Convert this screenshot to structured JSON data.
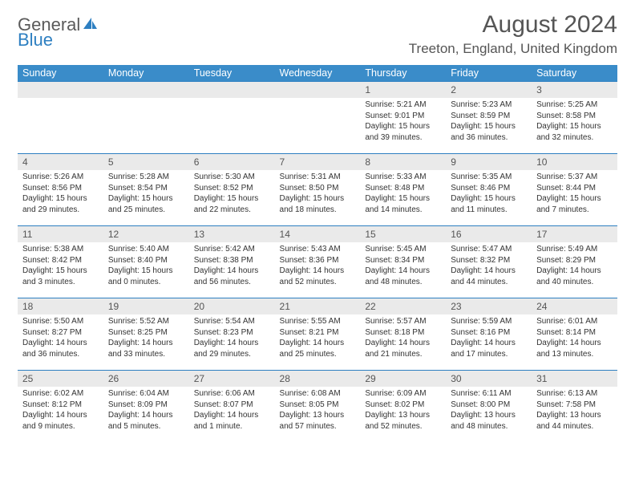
{
  "brand": {
    "part1": "General",
    "part2": "Blue"
  },
  "title": "August 2024",
  "location": "Treeton, England, United Kingdom",
  "colors": {
    "header_bg": "#3a8cc9",
    "rule": "#2d7fc1",
    "daynum_bg": "#eaeaea",
    "text": "#333333",
    "muted": "#555555",
    "brand_gray": "#5a5a5a",
    "brand_blue": "#2d7fc1",
    "page_bg": "#ffffff"
  },
  "typography": {
    "title_size_pt": 22,
    "location_size_pt": 13,
    "day_header_size_pt": 9.5,
    "daynum_size_pt": 9,
    "body_size_pt": 7.5
  },
  "weekdays": [
    "Sunday",
    "Monday",
    "Tuesday",
    "Wednesday",
    "Thursday",
    "Friday",
    "Saturday"
  ],
  "weeks": [
    [
      {
        "n": "",
        "lines": []
      },
      {
        "n": "",
        "lines": []
      },
      {
        "n": "",
        "lines": []
      },
      {
        "n": "",
        "lines": []
      },
      {
        "n": "1",
        "lines": [
          "Sunrise: 5:21 AM",
          "Sunset: 9:01 PM",
          "Daylight: 15 hours and 39 minutes."
        ]
      },
      {
        "n": "2",
        "lines": [
          "Sunrise: 5:23 AM",
          "Sunset: 8:59 PM",
          "Daylight: 15 hours and 36 minutes."
        ]
      },
      {
        "n": "3",
        "lines": [
          "Sunrise: 5:25 AM",
          "Sunset: 8:58 PM",
          "Daylight: 15 hours and 32 minutes."
        ]
      }
    ],
    [
      {
        "n": "4",
        "lines": [
          "Sunrise: 5:26 AM",
          "Sunset: 8:56 PM",
          "Daylight: 15 hours and 29 minutes."
        ]
      },
      {
        "n": "5",
        "lines": [
          "Sunrise: 5:28 AM",
          "Sunset: 8:54 PM",
          "Daylight: 15 hours and 25 minutes."
        ]
      },
      {
        "n": "6",
        "lines": [
          "Sunrise: 5:30 AM",
          "Sunset: 8:52 PM",
          "Daylight: 15 hours and 22 minutes."
        ]
      },
      {
        "n": "7",
        "lines": [
          "Sunrise: 5:31 AM",
          "Sunset: 8:50 PM",
          "Daylight: 15 hours and 18 minutes."
        ]
      },
      {
        "n": "8",
        "lines": [
          "Sunrise: 5:33 AM",
          "Sunset: 8:48 PM",
          "Daylight: 15 hours and 14 minutes."
        ]
      },
      {
        "n": "9",
        "lines": [
          "Sunrise: 5:35 AM",
          "Sunset: 8:46 PM",
          "Daylight: 15 hours and 11 minutes."
        ]
      },
      {
        "n": "10",
        "lines": [
          "Sunrise: 5:37 AM",
          "Sunset: 8:44 PM",
          "Daylight: 15 hours and 7 minutes."
        ]
      }
    ],
    [
      {
        "n": "11",
        "lines": [
          "Sunrise: 5:38 AM",
          "Sunset: 8:42 PM",
          "Daylight: 15 hours and 3 minutes."
        ]
      },
      {
        "n": "12",
        "lines": [
          "Sunrise: 5:40 AM",
          "Sunset: 8:40 PM",
          "Daylight: 15 hours and 0 minutes."
        ]
      },
      {
        "n": "13",
        "lines": [
          "Sunrise: 5:42 AM",
          "Sunset: 8:38 PM",
          "Daylight: 14 hours and 56 minutes."
        ]
      },
      {
        "n": "14",
        "lines": [
          "Sunrise: 5:43 AM",
          "Sunset: 8:36 PM",
          "Daylight: 14 hours and 52 minutes."
        ]
      },
      {
        "n": "15",
        "lines": [
          "Sunrise: 5:45 AM",
          "Sunset: 8:34 PM",
          "Daylight: 14 hours and 48 minutes."
        ]
      },
      {
        "n": "16",
        "lines": [
          "Sunrise: 5:47 AM",
          "Sunset: 8:32 PM",
          "Daylight: 14 hours and 44 minutes."
        ]
      },
      {
        "n": "17",
        "lines": [
          "Sunrise: 5:49 AM",
          "Sunset: 8:29 PM",
          "Daylight: 14 hours and 40 minutes."
        ]
      }
    ],
    [
      {
        "n": "18",
        "lines": [
          "Sunrise: 5:50 AM",
          "Sunset: 8:27 PM",
          "Daylight: 14 hours and 36 minutes."
        ]
      },
      {
        "n": "19",
        "lines": [
          "Sunrise: 5:52 AM",
          "Sunset: 8:25 PM",
          "Daylight: 14 hours and 33 minutes."
        ]
      },
      {
        "n": "20",
        "lines": [
          "Sunrise: 5:54 AM",
          "Sunset: 8:23 PM",
          "Daylight: 14 hours and 29 minutes."
        ]
      },
      {
        "n": "21",
        "lines": [
          "Sunrise: 5:55 AM",
          "Sunset: 8:21 PM",
          "Daylight: 14 hours and 25 minutes."
        ]
      },
      {
        "n": "22",
        "lines": [
          "Sunrise: 5:57 AM",
          "Sunset: 8:18 PM",
          "Daylight: 14 hours and 21 minutes."
        ]
      },
      {
        "n": "23",
        "lines": [
          "Sunrise: 5:59 AM",
          "Sunset: 8:16 PM",
          "Daylight: 14 hours and 17 minutes."
        ]
      },
      {
        "n": "24",
        "lines": [
          "Sunrise: 6:01 AM",
          "Sunset: 8:14 PM",
          "Daylight: 14 hours and 13 minutes."
        ]
      }
    ],
    [
      {
        "n": "25",
        "lines": [
          "Sunrise: 6:02 AM",
          "Sunset: 8:12 PM",
          "Daylight: 14 hours and 9 minutes."
        ]
      },
      {
        "n": "26",
        "lines": [
          "Sunrise: 6:04 AM",
          "Sunset: 8:09 PM",
          "Daylight: 14 hours and 5 minutes."
        ]
      },
      {
        "n": "27",
        "lines": [
          "Sunrise: 6:06 AM",
          "Sunset: 8:07 PM",
          "Daylight: 14 hours and 1 minute."
        ]
      },
      {
        "n": "28",
        "lines": [
          "Sunrise: 6:08 AM",
          "Sunset: 8:05 PM",
          "Daylight: 13 hours and 57 minutes."
        ]
      },
      {
        "n": "29",
        "lines": [
          "Sunrise: 6:09 AM",
          "Sunset: 8:02 PM",
          "Daylight: 13 hours and 52 minutes."
        ]
      },
      {
        "n": "30",
        "lines": [
          "Sunrise: 6:11 AM",
          "Sunset: 8:00 PM",
          "Daylight: 13 hours and 48 minutes."
        ]
      },
      {
        "n": "31",
        "lines": [
          "Sunrise: 6:13 AM",
          "Sunset: 7:58 PM",
          "Daylight: 13 hours and 44 minutes."
        ]
      }
    ]
  ]
}
